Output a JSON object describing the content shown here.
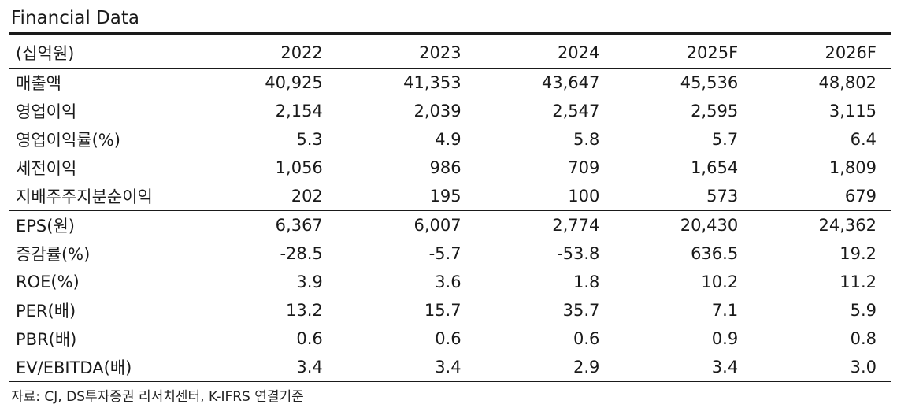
{
  "title": "Financial Data",
  "header": [
    "(십억원)",
    "2022",
    "2023",
    "2024",
    "2025F",
    "2026F"
  ],
  "rows": [
    {
      "label": "매출액",
      "values": [
        "40,925",
        "41,353",
        "43,647",
        "45,536",
        "48,802"
      ]
    },
    {
      "label": "영업이익",
      "values": [
        "2,154",
        "2,039",
        "2,547",
        "2,595",
        "3,115"
      ]
    },
    {
      "label": "영업이익률(%)",
      "values": [
        "5.3",
        "4.9",
        "5.8",
        "5.7",
        "6.4"
      ]
    },
    {
      "label": "세전이익",
      "values": [
        "1,056",
        "986",
        "709",
        "1,654",
        "1,809"
      ]
    },
    {
      "label": "지배주주지분순이익",
      "values": [
        "202",
        "195",
        "100",
        "573",
        "679"
      ]
    },
    {
      "label": "EPS(원)",
      "values": [
        "6,367",
        "6,007",
        "2,774",
        "20,430",
        "24,362"
      ]
    },
    {
      "label": "증감률(%)",
      "values": [
        "-28.5",
        "-5.7",
        "-53.8",
        "636.5",
        "19.2"
      ]
    },
    {
      "label": "ROE(%)",
      "values": [
        "3.9",
        "3.6",
        "1.8",
        "10.2",
        "11.2"
      ]
    },
    {
      "label": "PER(배)",
      "values": [
        "13.2",
        "15.7",
        "35.7",
        "7.1",
        "5.9"
      ]
    },
    {
      "label": "PBR(배)",
      "values": [
        "0.6",
        "0.6",
        "0.6",
        "0.9",
        "0.8"
      ]
    },
    {
      "label": "EV/EBITDA(배)",
      "values": [
        "3.4",
        "3.4",
        "2.9",
        "3.4",
        "3.0"
      ]
    }
  ],
  "source": "자료: CJ, DS투자증권 리서치센터, K-IFRS 연결기준"
}
